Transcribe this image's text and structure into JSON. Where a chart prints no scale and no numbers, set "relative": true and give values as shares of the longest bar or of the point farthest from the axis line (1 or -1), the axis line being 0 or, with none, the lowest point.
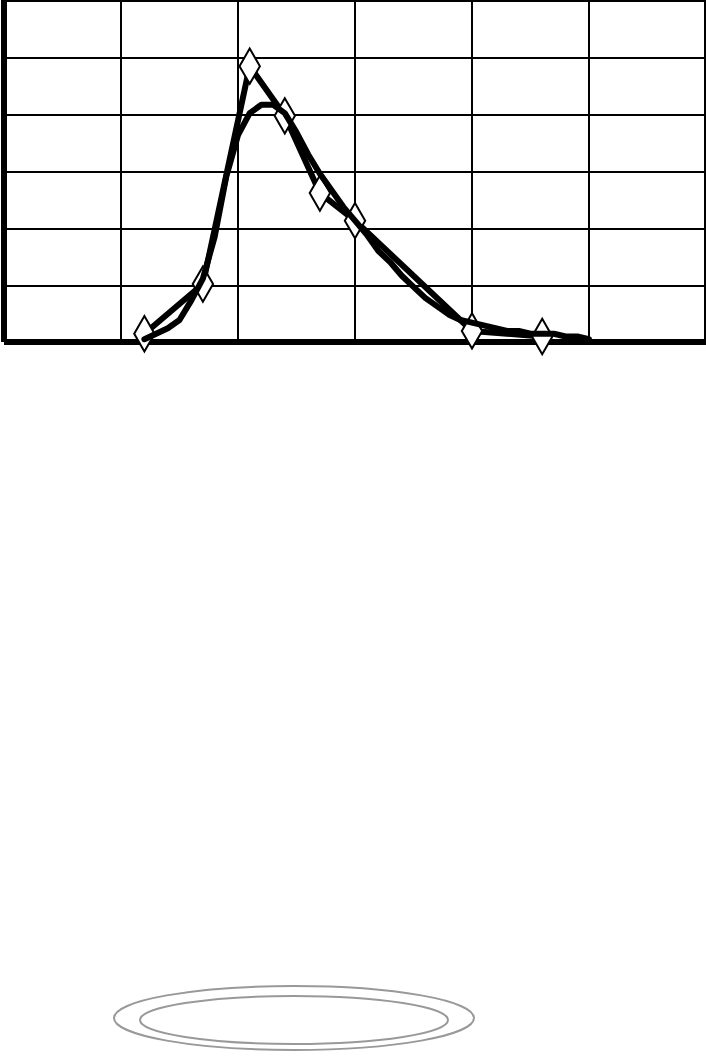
{
  "chart_data": {
    "type": "line",
    "relative": true,
    "grid": true,
    "categories": [
      null,
      null,
      null,
      null,
      null,
      null,
      null,
      null,
      null,
      null,
      null,
      null,
      null,
      null,
      null,
      null,
      null,
      null,
      null,
      null,
      null,
      null,
      null,
      null,
      null,
      null,
      null,
      null,
      null,
      null,
      null,
      null,
      null,
      null,
      null,
      null,
      null,
      null,
      null,
      null,
      null,
      null,
      null,
      null,
      null,
      null,
      null,
      null,
      null,
      null,
      null,
      null,
      null,
      null,
      null,
      null,
      null,
      null,
      null,
      null,
      null
    ],
    "series": [
      {
        "color": "#000000",
        "marker": "diamond",
        "values": [
          null,
          null,
          null,
          null,
          null,
          null,
          null,
          null,
          null,
          null,
          null,
          null,
          0.03,
          null,
          null,
          null,
          null,
          0.21,
          null,
          null,
          null,
          1,
          null,
          null,
          0.82,
          null,
          null,
          0.54,
          null,
          null,
          0.44,
          null,
          null,
          null,
          null,
          null,
          null,
          null,
          null,
          null,
          0.04,
          null,
          null,
          null,
          null,
          null,
          0.02,
          null,
          null,
          null,
          null,
          null,
          null,
          null,
          null,
          null,
          null,
          null,
          null,
          null,
          null
        ]
      },
      {
        "color": "#000000",
        "marker": "none",
        "values": [
          null,
          null,
          null,
          null,
          null,
          null,
          null,
          null,
          null,
          null,
          null,
          null,
          0.01,
          0.03,
          0.05,
          0.08,
          0.15,
          0.23,
          0.38,
          0.6,
          0.75,
          0.83,
          0.86,
          0.86,
          0.83,
          0.76,
          0.68,
          0.61,
          0.55,
          0.49,
          0.44,
          0.39,
          0.33,
          0.29,
          0.24,
          0.2,
          0.16,
          0.13,
          0.1,
          0.08,
          0.07,
          0.06,
          0.05,
          0.04,
          0.04,
          0.03,
          0.03,
          0.03,
          0.02,
          0.02,
          0.01,
          null,
          null,
          null,
          null,
          null,
          null,
          null,
          null,
          null,
          null
        ]
      }
    ]
  }
}
